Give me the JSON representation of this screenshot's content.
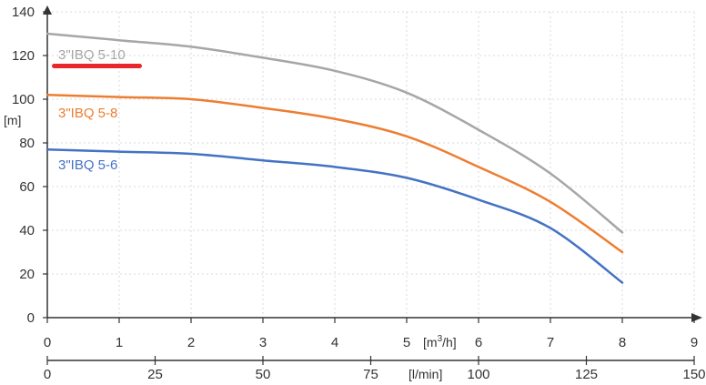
{
  "chart_data": {
    "type": "line",
    "ylabel": "[m]",
    "x_primary_unit": "[m³/h]",
    "x_secondary_unit": "[l/min]",
    "ylim": [
      0,
      140
    ],
    "y_ticks": [
      "0",
      "20",
      "40",
      "60",
      "80",
      "100",
      "120",
      "140"
    ],
    "xlim": [
      0,
      9
    ],
    "x_ticks": [
      "0",
      "1",
      "2",
      "3",
      "4",
      "5",
      "6",
      "7",
      "8",
      "9"
    ],
    "x2lim": [
      0,
      150
    ],
    "x2_ticks": [
      "0",
      "25",
      "50",
      "75",
      "100",
      "125",
      "150"
    ],
    "grid": true,
    "highlight_color": "#e8262c",
    "series": [
      {
        "name": "3\"IBQ 5-10",
        "color": "#a6a6a6",
        "x": [
          0,
          1,
          2,
          3,
          4,
          5,
          6,
          7,
          8
        ],
        "y": [
          130,
          127,
          124,
          119,
          113,
          103,
          86,
          66,
          39
        ]
      },
      {
        "name": "3\"IBQ 5-8",
        "color": "#ed7d31",
        "x": [
          0,
          1,
          2,
          3,
          4,
          5,
          6,
          7,
          8
        ],
        "y": [
          102,
          101,
          100,
          96,
          91,
          83,
          69,
          53,
          30
        ]
      },
      {
        "name": "3\"IBQ 5-6",
        "color": "#4472c4",
        "x": [
          0,
          1,
          2,
          3,
          4,
          5,
          6,
          7,
          8
        ],
        "y": [
          77,
          76,
          75,
          72,
          69,
          64,
          54,
          41,
          16
        ]
      }
    ]
  }
}
